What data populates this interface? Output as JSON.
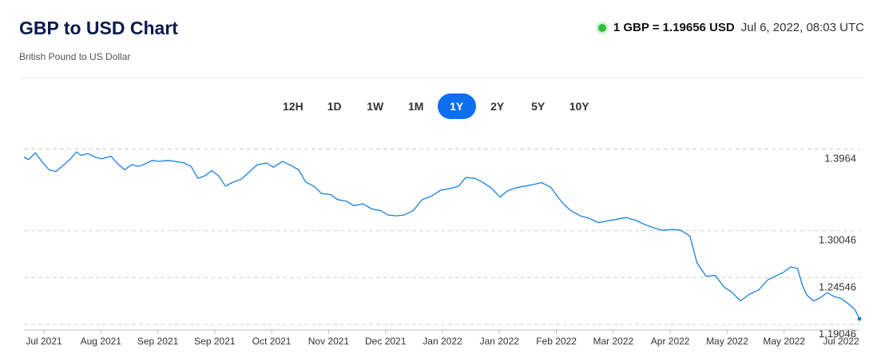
{
  "header": {
    "title": "GBP to USD Chart",
    "subtitle": "British Pound to US Dollar",
    "rate_value": "1 GBP = 1.19656 USD",
    "rate_time": "Jul 6, 2022, 08:03 UTC"
  },
  "tabs": [
    {
      "label": "12H",
      "active": false
    },
    {
      "label": "1D",
      "active": false
    },
    {
      "label": "1W",
      "active": false
    },
    {
      "label": "1M",
      "active": false
    },
    {
      "label": "1Y",
      "active": true
    },
    {
      "label": "2Y",
      "active": false
    },
    {
      "label": "5Y",
      "active": false
    },
    {
      "label": "10Y",
      "active": false
    }
  ],
  "colors": {
    "accent": "#0e6ef0",
    "line": "#1a7fe0",
    "live": "#2fbf3a"
  },
  "chart_data": {
    "type": "line",
    "title": "GBP to USD Chart",
    "y_ticks": [
      {
        "value": 1.3964,
        "label": "1.3964"
      },
      {
        "value": 1.30046,
        "label": "1.30046"
      },
      {
        "value": 1.24546,
        "label": "1.24546"
      },
      {
        "value": 1.19046,
        "label": "1.19046"
      }
    ],
    "ylim": [
      1.1848,
      1.4072
    ],
    "x_ticks": [
      "Jul 2021",
      "Aug 2021",
      "Sep 2021",
      "Sep 2021",
      "Oct 2021",
      "Nov 2021",
      "Dec 2021",
      "Jan 2022",
      "Jan 2022",
      "Feb 2022",
      "Mar 2022",
      "Apr 2022",
      "May 2022",
      "May 2022",
      "Jul 2022"
    ],
    "grid": "dashed horizontal",
    "series": [
      {
        "x": [
          "2021-07-06",
          "2021-07-08",
          "2021-07-11",
          "2021-07-14",
          "2021-07-17",
          "2021-07-20",
          "2021-07-23",
          "2021-07-26",
          "2021-07-29",
          "2021-07-31",
          "2021-08-03",
          "2021-08-06",
          "2021-08-09",
          "2021-08-13",
          "2021-08-16",
          "2021-08-19",
          "2021-08-22",
          "2021-08-25",
          "2021-08-28",
          "2021-08-31",
          "2021-09-03",
          "2021-09-07",
          "2021-09-10",
          "2021-09-14",
          "2021-09-17",
          "2021-09-20",
          "2021-09-23",
          "2021-09-26",
          "2021-09-29",
          "2021-10-02",
          "2021-10-05",
          "2021-10-09",
          "2021-10-13",
          "2021-10-16",
          "2021-10-20",
          "2021-10-23",
          "2021-10-27",
          "2021-10-30",
          "2021-11-03",
          "2021-11-06",
          "2021-11-10",
          "2021-11-13",
          "2021-11-17",
          "2021-11-20",
          "2021-11-24",
          "2021-11-27",
          "2021-12-01",
          "2021-12-05",
          "2021-12-09",
          "2021-12-12",
          "2021-12-16",
          "2021-12-19",
          "2021-12-23",
          "2021-12-27",
          "2021-12-31",
          "2022-01-04",
          "2022-01-08",
          "2022-01-12",
          "2022-01-15",
          "2022-01-19",
          "2022-01-22",
          "2022-01-26",
          "2022-01-30",
          "2022-02-02",
          "2022-02-06",
          "2022-02-10",
          "2022-02-14",
          "2022-02-17",
          "2022-02-21",
          "2022-02-24",
          "2022-02-27",
          "2022-03-02",
          "2022-03-06",
          "2022-03-10",
          "2022-03-14",
          "2022-03-18",
          "2022-03-22",
          "2022-03-26",
          "2022-03-30",
          "2022-04-03",
          "2022-04-07",
          "2022-04-11",
          "2022-04-15",
          "2022-04-19",
          "2022-04-23",
          "2022-04-26",
          "2022-04-30",
          "2022-05-04",
          "2022-05-08",
          "2022-05-11",
          "2022-05-15",
          "2022-05-19",
          "2022-05-23",
          "2022-05-27",
          "2022-05-31",
          "2022-06-03",
          "2022-06-06",
          "2022-06-09",
          "2022-06-11",
          "2022-06-13",
          "2022-06-16",
          "2022-06-19",
          "2022-06-22",
          "2022-06-25",
          "2022-06-28",
          "2022-07-01",
          "2022-07-04",
          "2022-07-06"
        ],
        "values": [
          1.387,
          1.384,
          1.392,
          1.381,
          1.372,
          1.37,
          1.377,
          1.384,
          1.393,
          1.389,
          1.391,
          1.387,
          1.385,
          1.388,
          1.379,
          1.372,
          1.378,
          1.376,
          1.379,
          1.383,
          1.382,
          1.383,
          1.382,
          1.38,
          1.376,
          1.362,
          1.365,
          1.371,
          1.365,
          1.353,
          1.357,
          1.361,
          1.371,
          1.378,
          1.38,
          1.375,
          1.382,
          1.378,
          1.372,
          1.358,
          1.352,
          1.344,
          1.343,
          1.337,
          1.335,
          1.33,
          1.332,
          1.326,
          1.324,
          1.319,
          1.318,
          1.319,
          1.324,
          1.337,
          1.341,
          1.348,
          1.35,
          1.353,
          1.363,
          1.362,
          1.358,
          1.351,
          1.34,
          1.347,
          1.351,
          1.353,
          1.355,
          1.357,
          1.352,
          1.341,
          1.331,
          1.324,
          1.318,
          1.315,
          1.31,
          1.312,
          1.314,
          1.316,
          1.313,
          1.308,
          1.304,
          1.301,
          1.302,
          1.301,
          1.294,
          1.263,
          1.247,
          1.248,
          1.234,
          1.229,
          1.218,
          1.226,
          1.231,
          1.243,
          1.248,
          1.252,
          1.258,
          1.256,
          1.237,
          1.225,
          1.218,
          1.222,
          1.228,
          1.223,
          1.221,
          1.215,
          1.208,
          1.197
        ]
      }
    ]
  }
}
